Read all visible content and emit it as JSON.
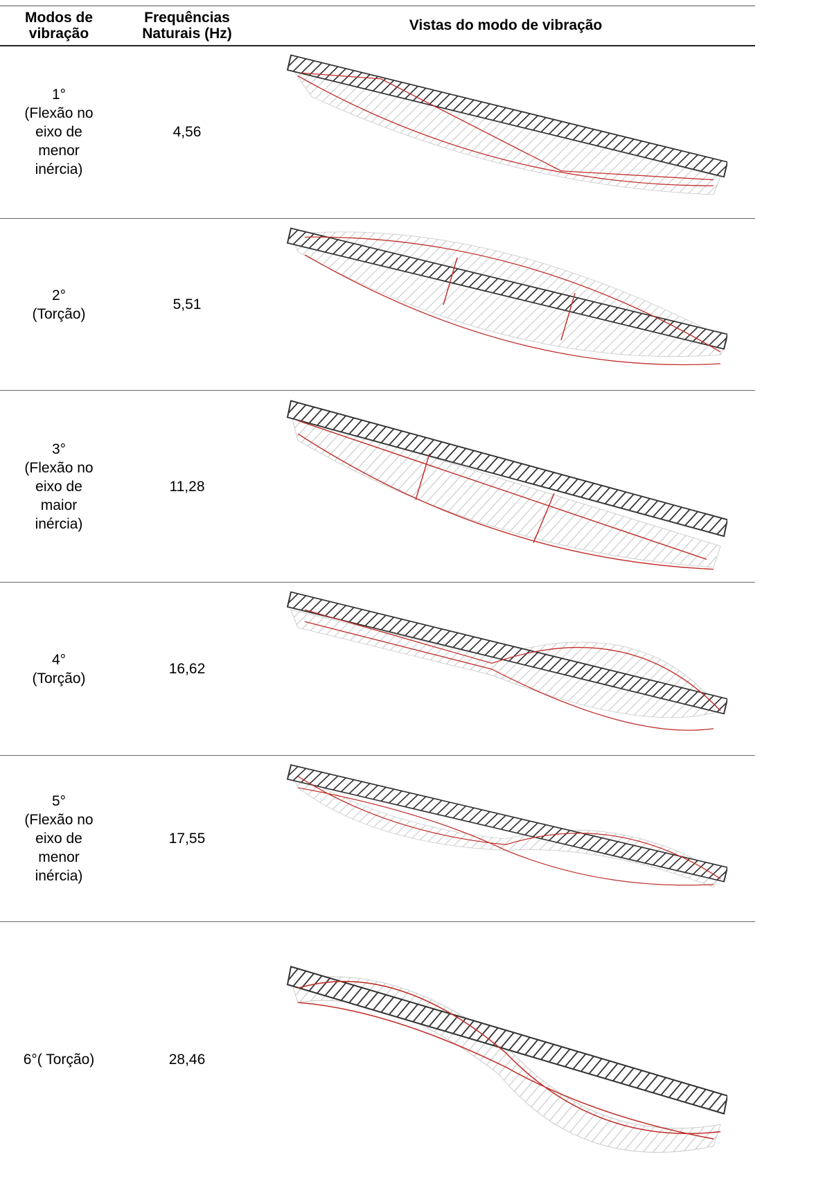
{
  "table": {
    "header": [
      "Modos de\nvibração",
      "Frequências\nNaturais (Hz)",
      "Vistas do modo de vibração"
    ],
    "rows": [
      [
        "1°\n(Flexão no\neixo de\nmenor\ninércia)",
        "4,56"
      ],
      [
        "2°\n(Torção)",
        "5,51"
      ],
      [
        "3°\n(Flexão no\neixo de\nmaior\ninércia)",
        "11,28"
      ],
      [
        "4°\n(Torção)",
        "16,62"
      ],
      [
        "5°\n(Flexão no\neixo de\nmenor\ninércia)",
        "17,55"
      ],
      [
        "6°( Torção)",
        "28,46"
      ]
    ]
  }
}
